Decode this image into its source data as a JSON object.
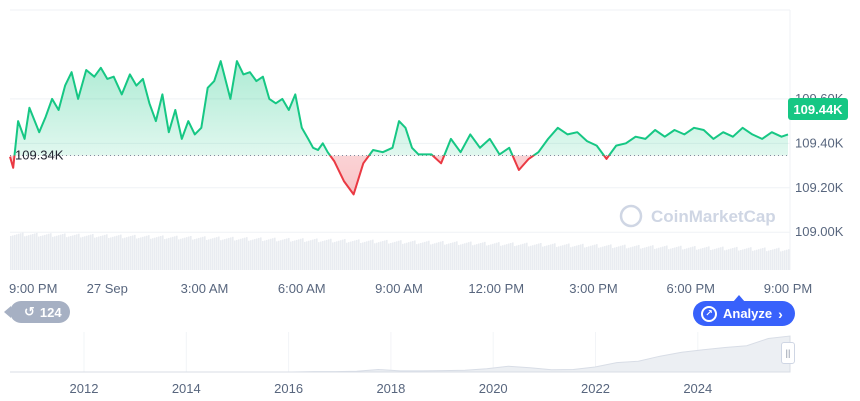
{
  "chart_data": {
    "type": "line",
    "title": "",
    "xlabel": "",
    "ylabel": "",
    "reference_price_label": "109.34K",
    "reference_price": 109.345,
    "current_price_label": "109.44K",
    "current_price": 109.44,
    "ylim": [
      108.83,
      110.0
    ],
    "y_ticks": [
      {
        "value": 109.6,
        "label": "109.60K"
      },
      {
        "value": 109.4,
        "label": "109.40K"
      },
      {
        "value": 109.2,
        "label": "109.20K"
      },
      {
        "value": 109.0,
        "label": "109.00K"
      }
    ],
    "x_ticks": [
      "9:00 PM",
      "27 Sep",
      "3:00 AM",
      "6:00 AM",
      "9:00 AM",
      "12:00 PM",
      "3:00 PM",
      "6:00 PM",
      "9:00 PM"
    ],
    "x_range_hours": [
      0,
      24
    ],
    "series": [
      {
        "x": [
          0,
          0.1,
          0.25,
          0.45,
          0.6,
          0.9,
          1.1,
          1.3,
          1.5,
          1.7,
          1.9,
          2.1,
          2.35,
          2.6,
          2.8,
          3.0,
          3.2,
          3.45,
          3.7,
          3.9,
          4.1,
          4.3,
          4.5,
          4.7,
          4.9,
          5.1,
          5.3,
          5.5,
          5.7,
          5.9,
          6.1,
          6.3,
          6.5,
          6.8,
          7.0,
          7.2,
          7.4,
          7.6,
          7.8,
          8.0,
          8.2,
          8.4,
          8.6,
          8.8,
          9.0,
          9.2,
          9.35,
          9.5,
          9.65,
          9.8,
          10.0,
          10.3,
          10.6,
          10.9,
          11.2,
          11.5,
          11.8,
          12.0,
          12.2,
          12.4,
          12.6,
          12.8,
          13.0,
          13.3,
          13.6,
          13.9,
          14.2,
          14.5,
          14.8,
          15.1,
          15.4,
          15.7,
          16.0,
          16.3,
          16.6,
          16.9,
          17.2,
          17.5,
          17.8,
          18.1,
          18.4,
          18.7,
          19.0,
          19.3,
          19.6,
          19.9,
          20.2,
          20.5,
          20.8,
          21.1,
          21.4,
          21.7,
          22.0,
          22.3,
          22.6,
          22.9,
          23.2,
          23.5,
          23.8,
          24.0
        ],
        "values": [
          109.34,
          109.29,
          109.5,
          109.42,
          109.56,
          109.45,
          109.52,
          109.6,
          109.55,
          109.66,
          109.72,
          109.6,
          109.73,
          109.7,
          109.74,
          109.69,
          109.7,
          109.62,
          109.71,
          109.66,
          109.69,
          109.58,
          109.5,
          109.62,
          109.45,
          109.55,
          109.42,
          109.5,
          109.44,
          109.47,
          109.65,
          109.68,
          109.77,
          109.6,
          109.77,
          109.71,
          109.72,
          109.68,
          109.7,
          109.6,
          109.58,
          109.6,
          109.55,
          109.62,
          109.47,
          109.42,
          109.38,
          109.37,
          109.4,
          109.36,
          109.32,
          109.23,
          109.17,
          109.31,
          109.37,
          109.36,
          109.38,
          109.5,
          109.47,
          109.38,
          109.35,
          109.35,
          109.35,
          109.31,
          109.42,
          109.36,
          109.44,
          109.38,
          109.42,
          109.35,
          109.38,
          109.28,
          109.33,
          109.36,
          109.42,
          109.47,
          109.44,
          109.45,
          109.41,
          109.39,
          109.33,
          109.39,
          109.4,
          109.43,
          109.42,
          109.46,
          109.43,
          109.46,
          109.44,
          109.47,
          109.46,
          109.42,
          109.45,
          109.43,
          109.47,
          109.44,
          109.42,
          109.45,
          109.43,
          109.44
        ]
      }
    ],
    "colors": {
      "up": "#16c784",
      "down": "#ea3943",
      "fill_up": "#16c784",
      "fill_down": "#ea3943",
      "tag": "#16c784"
    },
    "watermark": "CoinMarketCap",
    "volume": {
      "description_hidden": true
    },
    "brush": {
      "x_ticks": [
        "2012",
        "2014",
        "2016",
        "2018",
        "2020",
        "2022",
        "2024"
      ],
      "history": [
        0,
        0,
        0,
        0,
        0,
        0,
        0,
        0,
        0,
        0,
        0,
        0,
        0,
        0,
        0.01,
        0.01,
        0.02,
        0.07,
        0.03,
        0.03,
        0.04,
        0.05,
        0.09,
        0.16,
        0.12,
        0.06,
        0.07,
        0.14,
        0.26,
        0.3,
        0.44,
        0.55,
        0.62,
        0.68,
        0.73,
        0.93,
        1.0
      ]
    }
  },
  "ui": {
    "history_badge": {
      "icon": "history-icon",
      "count": "124"
    },
    "analyze_button": {
      "label": "Analyze",
      "icon": "analyze-icon"
    },
    "brush_handle_icon": "grip-icon"
  }
}
